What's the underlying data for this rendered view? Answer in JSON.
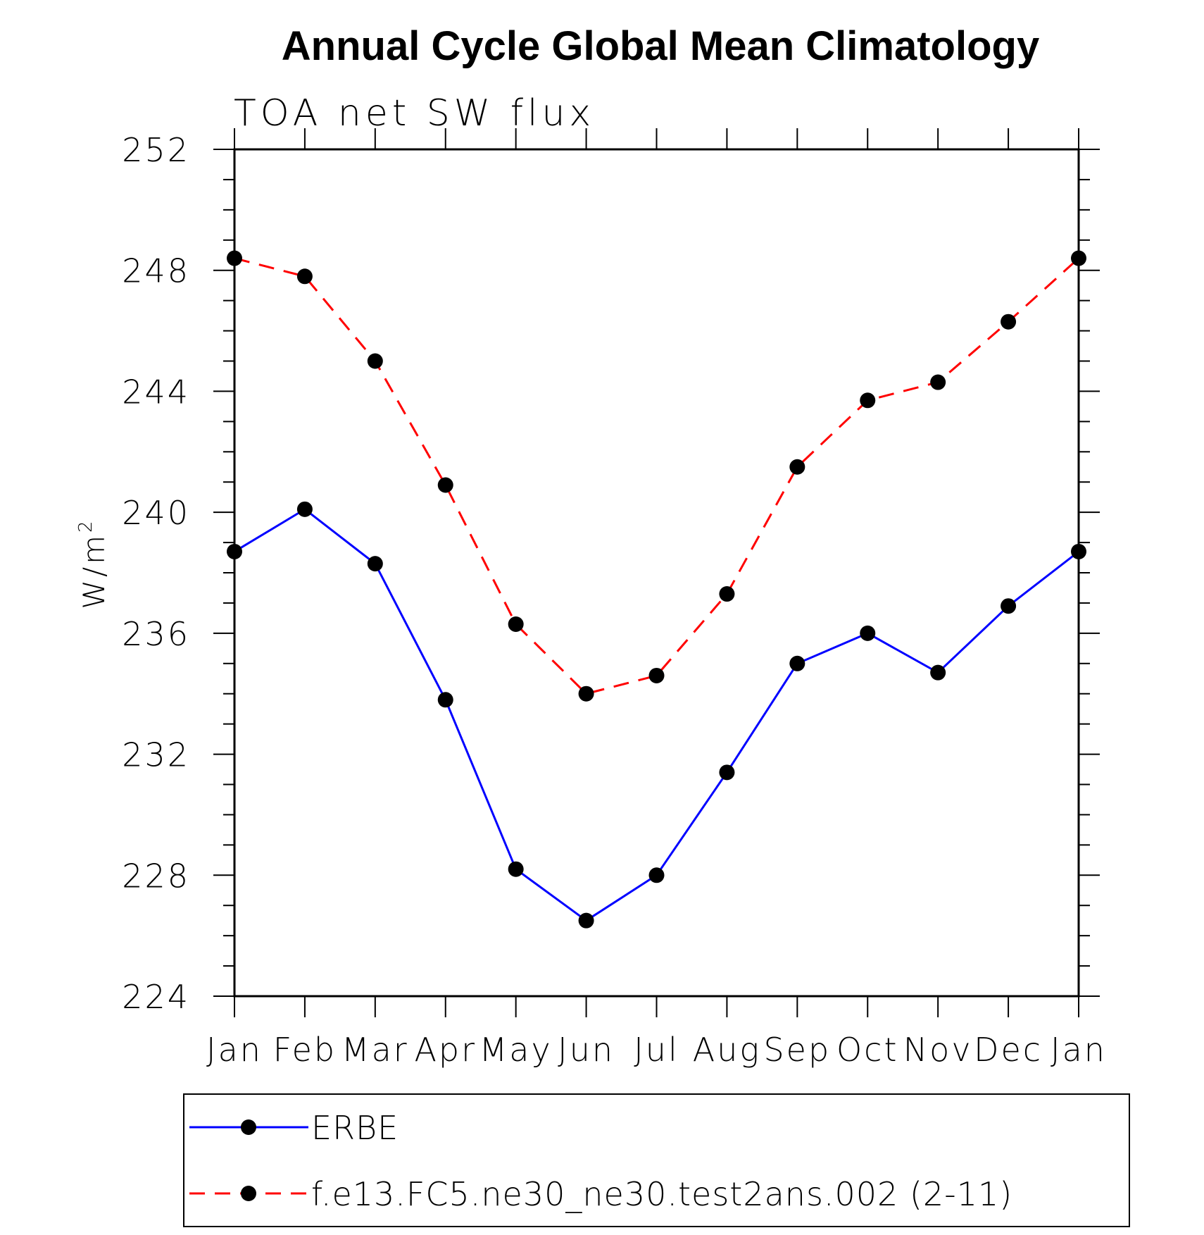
{
  "chart_data": {
    "type": "line",
    "title": "Annual Cycle Global Mean Climatology",
    "subtitle": "TOA net SW flux",
    "ylabel": "W/m",
    "ylabel_superscript": "2",
    "ylim": [
      224,
      252
    ],
    "y_ticks": [
      "224",
      "228",
      "232",
      "236",
      "240",
      "244",
      "248",
      "252"
    ],
    "categories": [
      "Jan",
      "Feb",
      "Mar",
      "Apr",
      "May",
      "Jun",
      "Jul",
      "Aug",
      "Sep",
      "Oct",
      "Nov",
      "Dec",
      "Jan"
    ],
    "grid": false,
    "legend_position": "bottom",
    "series": [
      {
        "name": "ERBE",
        "color": "#0000ff",
        "line_style": "solid",
        "marker": "filled-circle",
        "values": [
          238.7,
          240.1,
          238.3,
          233.8,
          228.2,
          226.5,
          228.0,
          231.4,
          235.0,
          236.0,
          234.7,
          236.9,
          238.7
        ]
      },
      {
        "name": "f.e13.FC5.ne30_ne30.test2ans.002 (2-11)",
        "color": "#ff0000",
        "line_style": "dashed",
        "marker": "filled-circle",
        "values": [
          248.4,
          247.8,
          245.0,
          240.9,
          236.3,
          234.0,
          234.6,
          237.3,
          241.5,
          243.7,
          244.3,
          246.3,
          248.4
        ]
      }
    ]
  }
}
